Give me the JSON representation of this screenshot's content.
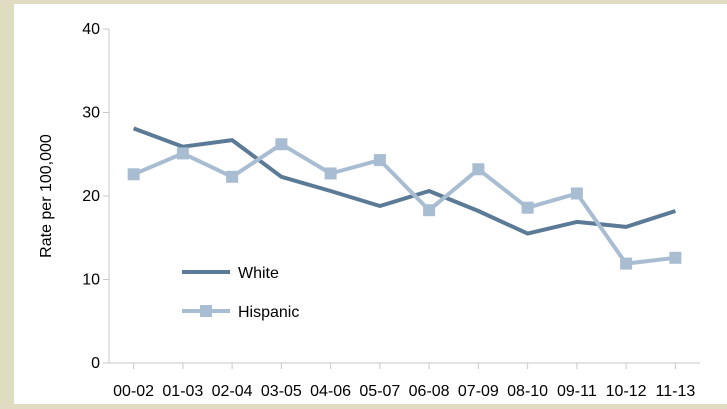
{
  "chart_data": {
    "type": "line",
    "title": "",
    "xlabel": "",
    "ylabel": "Rate per 100,000",
    "categories": [
      "00-02",
      "01-03",
      "02-04",
      "03-05",
      "04-06",
      "05-07",
      "06-08",
      "07-09",
      "08-10",
      "09-11",
      "10-12",
      "11-13"
    ],
    "ylim": [
      0,
      40
    ],
    "yticks": [
      "0",
      "10",
      "20",
      "30",
      "40"
    ],
    "grid": false,
    "legend_position": "bottom-left",
    "series": [
      {
        "name": "White",
        "color": "#5b7a96",
        "marker": "none",
        "values": [
          28.1,
          25.9,
          26.7,
          22.3,
          20.6,
          18.8,
          20.6,
          18.2,
          15.5,
          16.9,
          16.3,
          18.2
        ]
      },
      {
        "name": "Hispanic",
        "color": "#a8bdd2",
        "marker": "square",
        "values": [
          22.6,
          25.1,
          22.3,
          26.2,
          22.7,
          24.3,
          18.3,
          23.2,
          18.6,
          20.3,
          11.9,
          12.6
        ]
      }
    ]
  }
}
